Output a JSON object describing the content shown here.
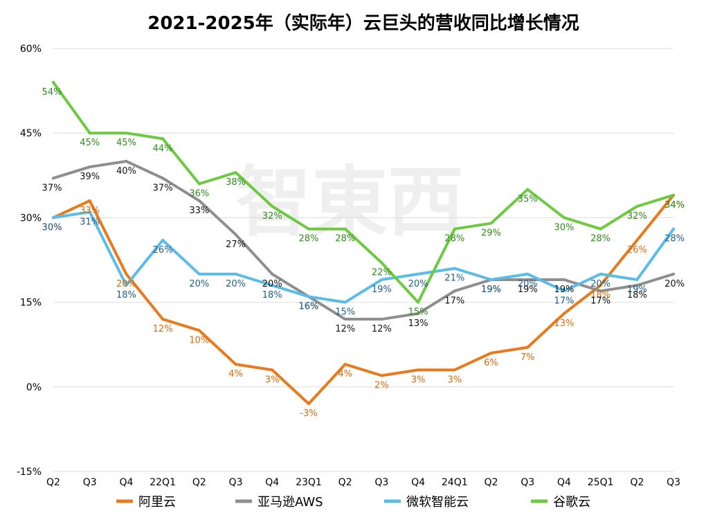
{
  "chart_data": {
    "type": "line",
    "title": "2021-2025年（实际年）云巨头的营收同比增长情况",
    "watermark": "智東西",
    "categories": [
      "Q2",
      "Q3",
      "Q4",
      "22Q1",
      "Q2",
      "Q3",
      "Q4",
      "23Q1",
      "Q2",
      "Q3",
      "Q4",
      "24Q1",
      "Q2",
      "Q3",
      "Q4",
      "25Q1",
      "Q2",
      "Q3"
    ],
    "ylim": [
      -15,
      60
    ],
    "yticks": [
      "-15%",
      "0%",
      "15%",
      "30%",
      "45%",
      "60%"
    ],
    "ytick_values": [
      -15,
      0,
      15,
      30,
      45,
      60
    ],
    "grid": true,
    "legend_position": "bottom",
    "series": [
      {
        "name": "阿里云",
        "color": "#e8791d",
        "values": [
          30,
          33,
          20,
          12,
          10,
          4,
          3,
          -3,
          4,
          2,
          3,
          3,
          6,
          7,
          13,
          18,
          26,
          34
        ],
        "labels": [
          "30%",
          "33%",
          "20%",
          "12%",
          "10%",
          "4%",
          "3%",
          "-3%",
          "4%",
          "2%",
          "3%",
          "3%",
          "6%",
          "7%",
          "13%",
          "18%",
          "26%",
          "34%"
        ]
      },
      {
        "name": "亚马逊AWS",
        "color": "#8e8e8e",
        "values": [
          37,
          39,
          40,
          37,
          33,
          27,
          20,
          16,
          12,
          12,
          13,
          17,
          19,
          19,
          19,
          17,
          18,
          20
        ],
        "labels": [
          "37%",
          "39%",
          "40%",
          "37%",
          "33%",
          "27%",
          "20%",
          "16%",
          "12%",
          "12%",
          "13%",
          "17%",
          "19%",
          "19%",
          "19%",
          "17%",
          "18%",
          "20%"
        ]
      },
      {
        "name": "微软智能云",
        "color": "#5bbce8",
        "values": [
          30,
          31,
          18,
          26,
          20,
          20,
          18,
          16,
          15,
          19,
          20,
          21,
          19,
          20,
          17,
          20,
          19,
          28
        ],
        "labels": [
          "30%",
          "31%",
          "18%",
          "26%",
          "20%",
          "20%",
          "18%",
          "16%",
          "15%",
          "19%",
          "20%",
          "21%",
          "19%",
          "20%",
          "17%",
          "20%",
          "19%",
          "28%"
        ]
      },
      {
        "name": "谷歌云",
        "color": "#6cc940",
        "values": [
          54,
          45,
          45,
          44,
          36,
          38,
          32,
          28,
          28,
          22,
          15,
          28,
          29,
          35,
          30,
          28,
          32,
          34
        ],
        "labels": [
          "54%",
          "45%",
          "45%",
          "44%",
          "36%",
          "38%",
          "32%",
          "28%",
          "28%",
          "22%",
          "15%",
          "28%",
          "29%",
          "35%",
          "30%",
          "28%",
          "32%",
          "34%"
        ]
      }
    ]
  }
}
